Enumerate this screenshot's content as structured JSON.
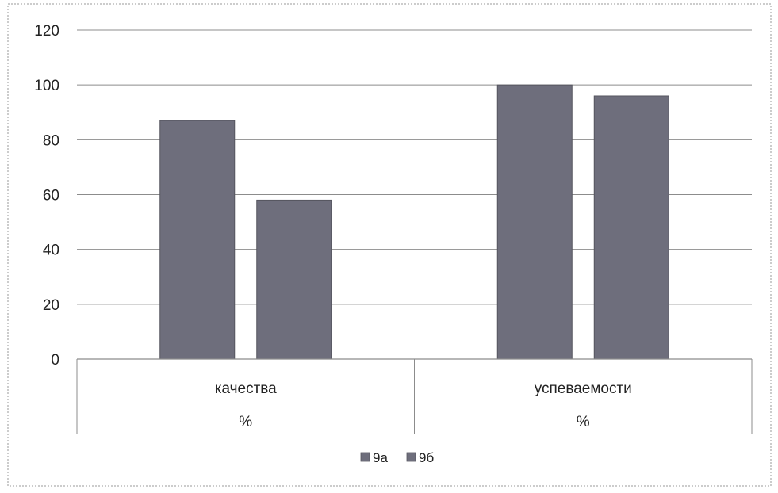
{
  "chart_data": {
    "type": "bar",
    "categories": [
      {
        "label": "качества",
        "sublabel": "%"
      },
      {
        "label": "успеваемости",
        "sublabel": "%"
      }
    ],
    "series": [
      {
        "name": "9а",
        "values": [
          87,
          100
        ],
        "color": "#6e6e7c"
      },
      {
        "name": "9б",
        "values": [
          58,
          96
        ],
        "color": "#6e6e7c"
      }
    ],
    "ylim": [
      0,
      120
    ],
    "yticks": [
      0,
      20,
      40,
      60,
      80,
      100,
      120
    ],
    "grid": true,
    "legend": "bottom",
    "colors": {
      "gridline": "#8c8c8c",
      "axis": "#8c8c8c",
      "frame": "#9a9a9a"
    }
  }
}
